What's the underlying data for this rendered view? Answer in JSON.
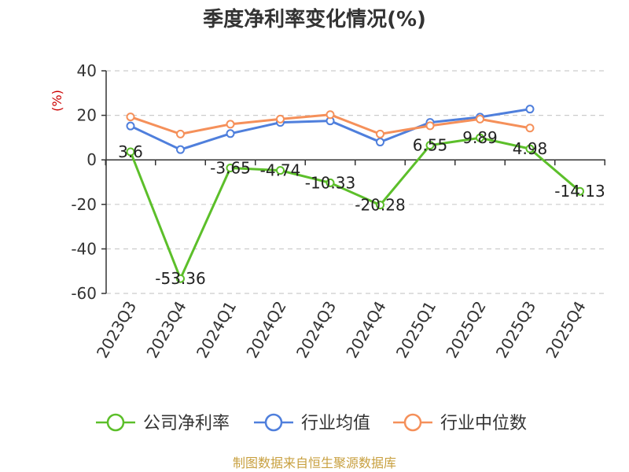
{
  "chart_data": {
    "type": "line",
    "title": "季度净利率变化情况(%)",
    "ylabel": "(%)",
    "ylim": [
      -60,
      40
    ],
    "yticks": [
      "40",
      "20",
      "0",
      "-20",
      "-40",
      "-60"
    ],
    "categories": [
      "2023Q3",
      "2023Q4",
      "2024Q1",
      "2024Q2",
      "2024Q3",
      "2024Q4",
      "2025Q1",
      "2025Q2",
      "2025Q3",
      "2025Q4"
    ],
    "grid": true,
    "legend_position": "bottom",
    "series": [
      {
        "name": "公司净利率",
        "color": "#5cbf2a",
        "values": [
          3.6,
          -53.36,
          -3.65,
          -4.74,
          -10.33,
          -20.28,
          6.55,
          9.89,
          4.98,
          -14.13
        ],
        "labels": [
          "3.6",
          "-53.36",
          "-3.65",
          "-4.74",
          "-10.33",
          "-20.28",
          "6.55",
          "9.89",
          "4.98",
          "-14.13"
        ]
      },
      {
        "name": "行业均值",
        "color": "#4f7fdc",
        "values": [
          15.2,
          4.6,
          11.8,
          16.8,
          17.5,
          8.0,
          16.8,
          19.2,
          22.8,
          null
        ]
      },
      {
        "name": "行业中位数",
        "color": "#f5905a",
        "values": [
          19.3,
          11.6,
          16.0,
          18.3,
          20.3,
          11.6,
          15.3,
          18.3,
          14.3,
          null
        ]
      }
    ]
  },
  "source": "制图数据来自恒生聚源数据库"
}
